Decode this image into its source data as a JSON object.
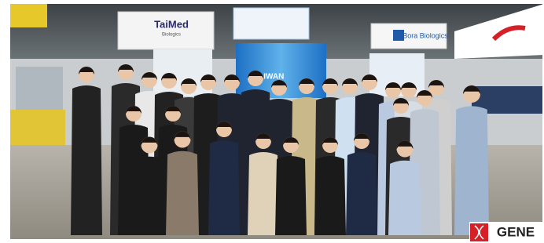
{
  "signs": [
    {
      "title": "TaiMed",
      "subtitle": "Biologics"
    },
    {
      "title": "TAIWAN"
    },
    {
      "title": "Bora Biologics"
    }
  ],
  "watermark": "GENE"
}
